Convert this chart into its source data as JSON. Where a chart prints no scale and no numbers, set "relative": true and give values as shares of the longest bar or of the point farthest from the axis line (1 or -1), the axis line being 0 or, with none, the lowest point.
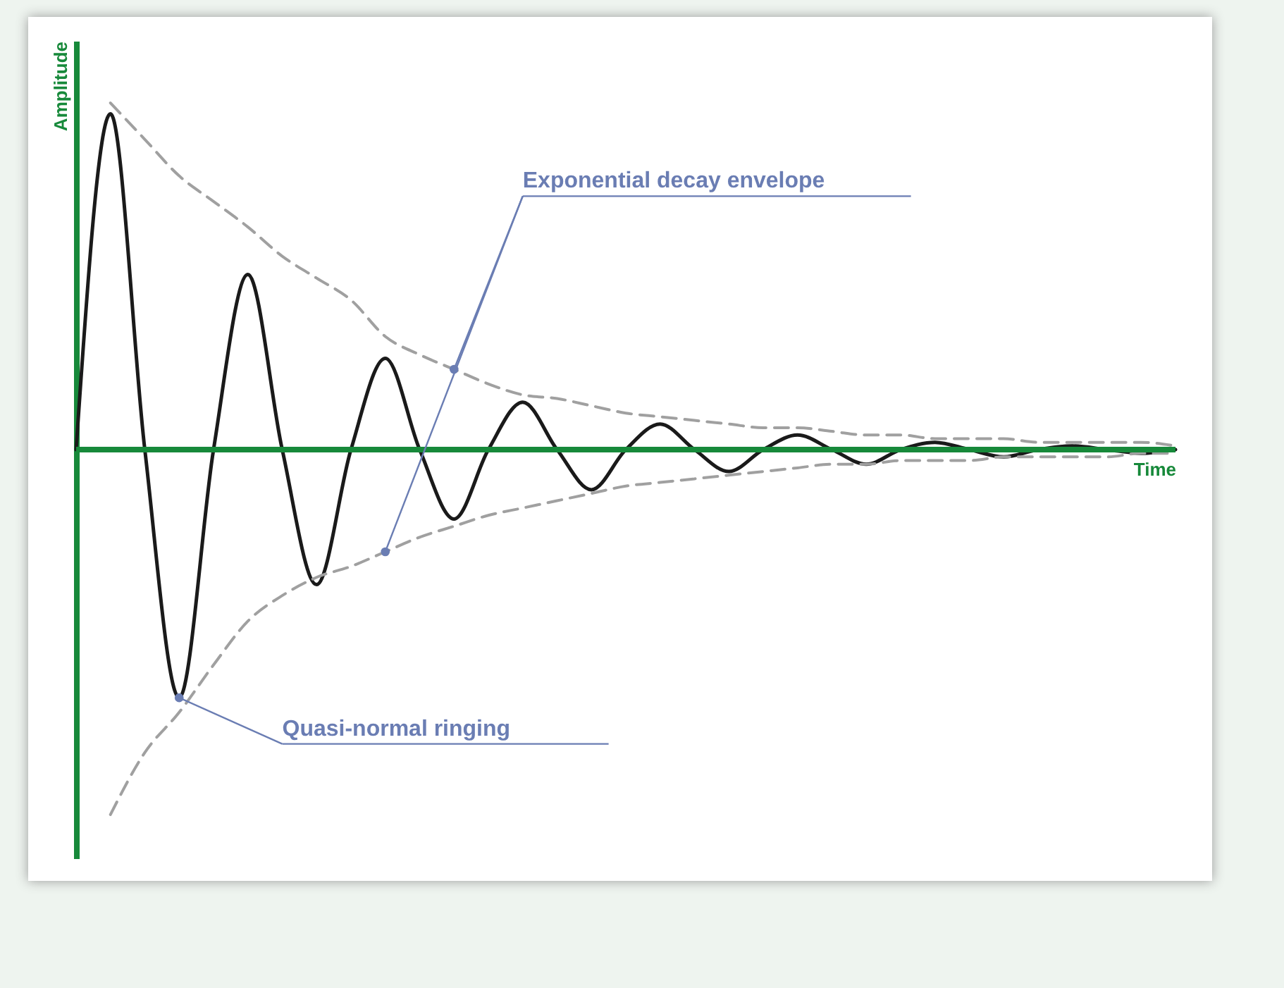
{
  "chart_data": {
    "type": "line",
    "relative": true,
    "tick_labels": false,
    "xlabel": "Time",
    "ylabel": "Amplitude",
    "categories": [
      null,
      null,
      null,
      null,
      null,
      null,
      null,
      null,
      null,
      null,
      null,
      null,
      null,
      null,
      null,
      null,
      null,
      null,
      null,
      null,
      null,
      null,
      null,
      null,
      null,
      null,
      null,
      null,
      null,
      null,
      null,
      null,
      null
    ],
    "series": [
      {
        "color": "#1a1a1a",
        "line_style": "solid",
        "values": [
          0,
          0.92,
          0,
          -0.68,
          0,
          0.48,
          0,
          -0.37,
          0,
          0.25,
          0,
          -0.19,
          0,
          0.13,
          0,
          -0.11,
          0,
          0.07,
          0,
          -0.06,
          0,
          0.04,
          0,
          -0.04,
          0,
          0.02,
          0,
          -0.02,
          0,
          0.01,
          0,
          -0.01,
          0
        ]
      },
      {
        "color": "#a0a0a0",
        "line_style": "dashed",
        "values": [
          null,
          0.95,
          0.85,
          0.75,
          0.68,
          0.61,
          0.53,
          0.47,
          0.41,
          0.31,
          0.26,
          0.22,
          0.18,
          0.15,
          0.14,
          0.12,
          0.1,
          0.09,
          0.08,
          0.07,
          0.06,
          0.06,
          0.05,
          0.04,
          0.04,
          0.03,
          0.03,
          0.03,
          0.02,
          0.02,
          0.02,
          0.02,
          0.01
        ]
      },
      {
        "color": "#a0a0a0",
        "line_style": "dashed",
        "values": [
          null,
          -1,
          -0.83,
          -0.72,
          -0.59,
          -0.47,
          -0.4,
          -0.35,
          -0.32,
          -0.28,
          -0.24,
          -0.21,
          -0.18,
          -0.16,
          -0.14,
          -0.12,
          -0.1,
          -0.09,
          -0.08,
          -0.07,
          -0.06,
          -0.05,
          -0.04,
          -0.04,
          -0.03,
          -0.03,
          -0.03,
          -0.02,
          -0.02,
          -0.02,
          -0.02,
          -0.01,
          -0.01
        ]
      }
    ],
    "ref_lines": [
      {
        "axis": "y",
        "value": 0,
        "color": "#17893a"
      }
    ],
    "annotations": [
      "Exponential decay envelope",
      "Quasi-normal ringing"
    ]
  }
}
